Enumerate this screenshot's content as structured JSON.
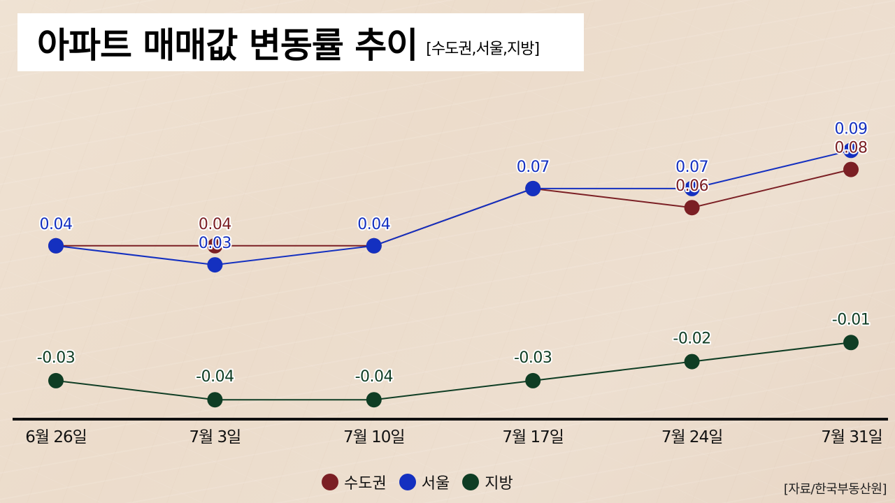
{
  "title": {
    "main": "아파트 매매값 변동률 추이",
    "sub": "[수도권,서울,지방]"
  },
  "source": "[자료/한국부동산원]",
  "chart_data": {
    "type": "line",
    "title": "아파트 매매값 변동률 추이 [수도권,서울,지방]",
    "xlabel": "",
    "ylabel": "",
    "grid": false,
    "legend_position": "bottom",
    "categories": [
      "6월 26일",
      "7월 3일",
      "7월 10일",
      "7월 17일",
      "7월 24일",
      "7월 31일"
    ],
    "series": [
      {
        "name": "수도권",
        "color": "#7b1f24",
        "values": [
          0.04,
          0.04,
          0.04,
          0.07,
          0.06,
          0.08
        ]
      },
      {
        "name": "서울",
        "color": "#1430c0",
        "values": [
          0.04,
          0.03,
          0.04,
          0.07,
          0.07,
          0.09
        ]
      },
      {
        "name": "지방",
        "color": "#0f3d24",
        "values": [
          -0.03,
          -0.04,
          -0.04,
          -0.03,
          -0.02,
          -0.01
        ]
      }
    ]
  },
  "legend": [
    {
      "label": "수도권",
      "color": "#7b1f24"
    },
    {
      "label": "서울",
      "color": "#1430c0"
    },
    {
      "label": "지방",
      "color": "#0f3d24"
    }
  ]
}
